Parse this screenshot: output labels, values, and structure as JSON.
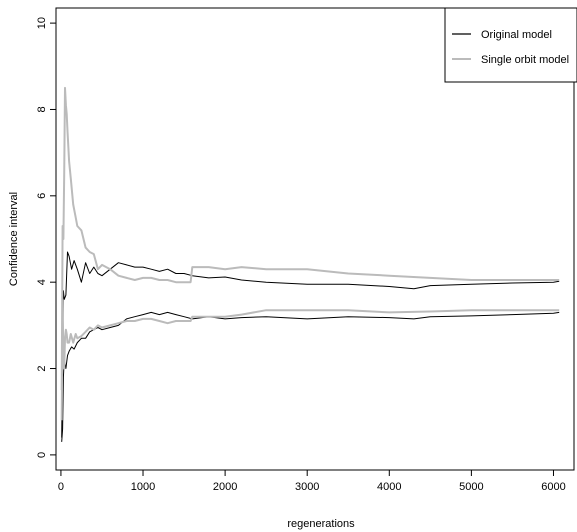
{
  "chart_data": {
    "type": "line",
    "xlabel": "regenerations",
    "ylabel": "Confidence interval",
    "xlim": [
      -60,
      6250
    ],
    "ylim": [
      -0.35,
      10.35
    ],
    "x_ticks": [
      0,
      1000,
      2000,
      3000,
      4000,
      5000,
      6000
    ],
    "y_ticks": [
      0,
      2,
      4,
      6,
      8,
      10
    ],
    "grid": false,
    "legend": {
      "placement": "top-right"
    },
    "series": [
      {
        "name": "Original model",
        "color": "#000000",
        "bound": "upper",
        "x": [
          10,
          20,
          30,
          40,
          60,
          80,
          100,
          130,
          160,
          200,
          250,
          300,
          350,
          400,
          450,
          500,
          600,
          700,
          800,
          900,
          1000,
          1100,
          1200,
          1300,
          1400,
          1500,
          1600,
          1800,
          2000,
          2200,
          2500,
          3000,
          3500,
          4000,
          4300,
          4500,
          5000,
          5500,
          6000,
          6070
        ],
        "y": [
          0.4,
          2.4,
          3.8,
          3.6,
          3.7,
          4.7,
          4.6,
          4.3,
          4.5,
          4.3,
          4.0,
          4.45,
          4.2,
          4.35,
          4.2,
          4.15,
          4.3,
          4.45,
          4.4,
          4.35,
          4.35,
          4.3,
          4.25,
          4.3,
          4.2,
          4.2,
          4.15,
          4.1,
          4.12,
          4.05,
          4.0,
          3.95,
          3.95,
          3.9,
          3.85,
          3.92,
          3.95,
          3.98,
          4.0,
          4.02
        ]
      },
      {
        "name": "Original model",
        "color": "#000000",
        "bound": "lower",
        "x": [
          10,
          20,
          30,
          40,
          60,
          80,
          100,
          130,
          160,
          200,
          250,
          300,
          350,
          400,
          450,
          500,
          600,
          700,
          800,
          900,
          1000,
          1100,
          1200,
          1300,
          1400,
          1500,
          1600,
          1800,
          2000,
          2200,
          2500,
          3000,
          3500,
          4000,
          4300,
          4500,
          5000,
          5500,
          6000,
          6070
        ],
        "y": [
          0.3,
          0.6,
          1.8,
          2.2,
          2.0,
          2.3,
          2.4,
          2.5,
          2.45,
          2.6,
          2.7,
          2.7,
          2.85,
          2.9,
          2.95,
          2.9,
          2.95,
          3.0,
          3.15,
          3.2,
          3.25,
          3.3,
          3.25,
          3.3,
          3.25,
          3.2,
          3.15,
          3.2,
          3.15,
          3.18,
          3.2,
          3.15,
          3.2,
          3.18,
          3.15,
          3.2,
          3.22,
          3.25,
          3.28,
          3.3
        ]
      },
      {
        "name": "Single orbit model",
        "color": "#bbbbbb",
        "bound": "upper",
        "x": [
          10,
          20,
          30,
          40,
          50,
          60,
          70,
          80,
          100,
          120,
          150,
          180,
          200,
          250,
          300,
          350,
          400,
          450,
          500,
          600,
          700,
          800,
          900,
          1000,
          1100,
          1200,
          1300,
          1400,
          1500,
          1580,
          1600,
          1800,
          2000,
          2200,
          2500,
          3000,
          3500,
          4000,
          4500,
          5000,
          5500,
          6000,
          6070
        ],
        "y": [
          1.5,
          5.3,
          5.0,
          6.5,
          8.5,
          8.1,
          7.9,
          7.5,
          6.8,
          6.4,
          5.8,
          5.5,
          5.3,
          5.2,
          4.8,
          4.7,
          4.65,
          4.3,
          4.4,
          4.3,
          4.15,
          4.1,
          4.05,
          4.1,
          4.1,
          4.05,
          4.05,
          4.0,
          4.0,
          4.0,
          4.35,
          4.35,
          4.3,
          4.35,
          4.3,
          4.3,
          4.2,
          4.15,
          4.1,
          4.05,
          4.05,
          4.05,
          4.05
        ]
      },
      {
        "name": "Single orbit model",
        "color": "#bbbbbb",
        "bound": "lower",
        "x": [
          10,
          20,
          30,
          40,
          50,
          60,
          70,
          80,
          100,
          120,
          150,
          180,
          200,
          250,
          300,
          350,
          400,
          450,
          500,
          600,
          700,
          800,
          900,
          1000,
          1100,
          1200,
          1300,
          1400,
          1500,
          1580,
          1600,
          1800,
          2000,
          2200,
          2500,
          3000,
          3500,
          4000,
          4500,
          5000,
          5500,
          6000,
          6070
        ],
        "y": [
          0.8,
          3.6,
          2.3,
          2.0,
          2.7,
          2.9,
          2.8,
          2.6,
          2.6,
          2.8,
          2.6,
          2.8,
          2.7,
          2.75,
          2.85,
          2.95,
          2.9,
          3.0,
          2.95,
          3.0,
          3.05,
          3.1,
          3.1,
          3.15,
          3.15,
          3.1,
          3.05,
          3.1,
          3.1,
          3.1,
          3.2,
          3.2,
          3.2,
          3.25,
          3.35,
          3.35,
          3.35,
          3.3,
          3.32,
          3.35,
          3.35,
          3.35,
          3.35
        ]
      }
    ]
  }
}
